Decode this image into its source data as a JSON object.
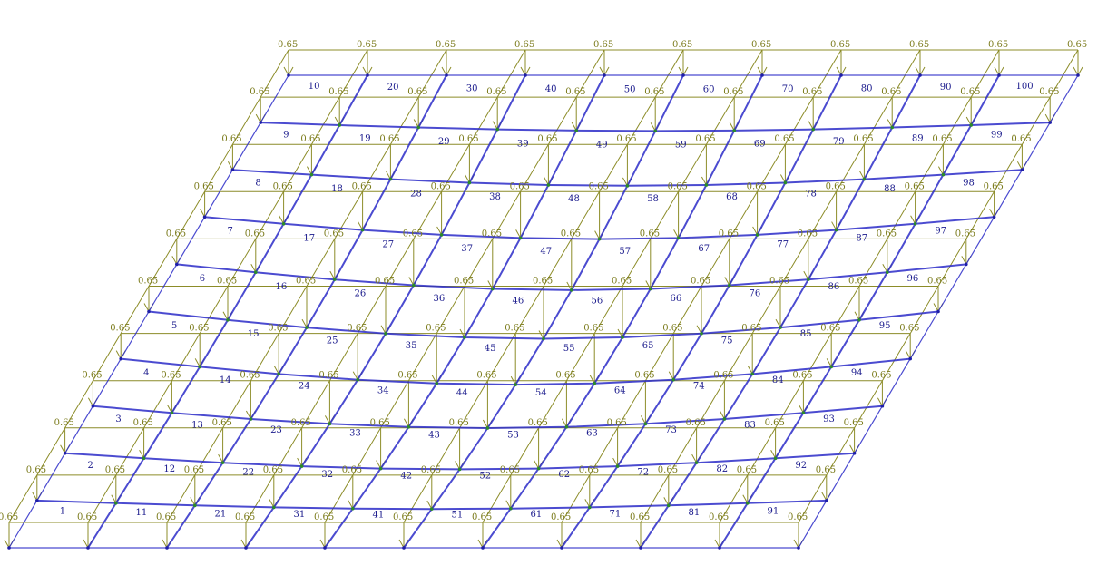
{
  "diagram": {
    "grid_cols": 10,
    "grid_rows": 10,
    "load_value": "0.65",
    "colors": {
      "background": "#ffffff",
      "frame": "#2b2bc8",
      "load": "#8c8c28",
      "load_text": "#7a7a1a",
      "element_text": "#1a1a8c",
      "node": "#1e1ea8",
      "node_mid": "#2a8a2a"
    },
    "element_numbers": [
      "1",
      "2",
      "3",
      "4",
      "5",
      "6",
      "7",
      "8",
      "9",
      "10",
      "11",
      "12",
      "13",
      "14",
      "15",
      "16",
      "17",
      "18",
      "19",
      "20",
      "21",
      "22",
      "23",
      "24",
      "25",
      "26",
      "27",
      "28",
      "29",
      "30",
      "31",
      "32",
      "33",
      "34",
      "35",
      "36",
      "37",
      "38",
      "39",
      "40",
      "41",
      "42",
      "43",
      "44",
      "45",
      "46",
      "47",
      "48",
      "49",
      "50",
      "51",
      "52",
      "53",
      "54",
      "55",
      "56",
      "57",
      "58",
      "59",
      "60",
      "61",
      "62",
      "63",
      "64",
      "65",
      "66",
      "67",
      "68",
      "69",
      "70",
      "71",
      "72",
      "73",
      "74",
      "75",
      "76",
      "77",
      "78",
      "79",
      "80",
      "81",
      "82",
      "83",
      "84",
      "85",
      "86",
      "87",
      "88",
      "89",
      "90",
      "91",
      "92",
      "93",
      "94",
      "95",
      "96",
      "97",
      "98",
      "99",
      "100"
    ]
  }
}
